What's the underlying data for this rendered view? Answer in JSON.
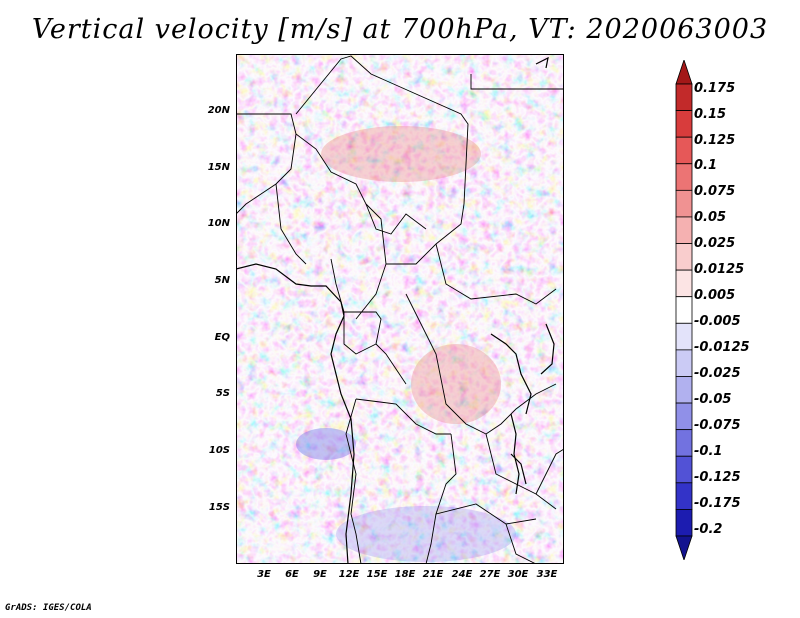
{
  "title": "Vertical velocity [m/s] at 700hPa, VT: 2020063003",
  "lat_labels": [
    "20N",
    "15N",
    "10N",
    "5N",
    "EQ",
    "5S",
    "10S",
    "15S"
  ],
  "lon_labels": [
    "3E",
    "6E",
    "9E",
    "12E",
    "15E",
    "18E",
    "21E",
    "24E",
    "27E",
    "30E",
    "33E"
  ],
  "colorbar": {
    "levels": [
      "0.175",
      "0.15",
      "0.125",
      "0.1",
      "0.075",
      "0.05",
      "0.025",
      "0.0125",
      "0.005",
      "-0.005",
      "-0.0125",
      "-0.025",
      "-0.05",
      "-0.075",
      "-0.1",
      "-0.125",
      "-0.175",
      "-0.2"
    ],
    "colors": [
      "#a31818",
      "#c22a2a",
      "#d83c3c",
      "#e65858",
      "#ec7474",
      "#f09292",
      "#f5b1b1",
      "#f9cdcd",
      "#fce4e4",
      "#ffffff",
      "#e3e3fa",
      "#cbcbf5",
      "#b1b1ef",
      "#9090e8",
      "#7272e0",
      "#5252d6",
      "#3333c8",
      "#1c1cb0",
      "#13138f"
    ]
  },
  "credit": "GrADS: IGES/COLA"
}
